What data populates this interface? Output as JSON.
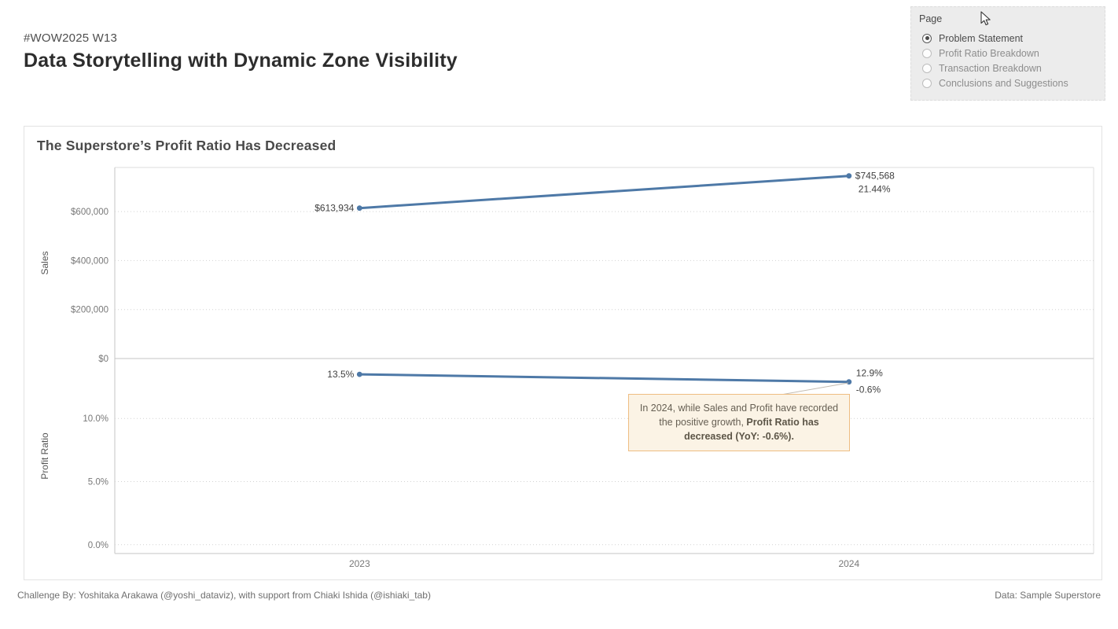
{
  "header": {
    "tag": "#WOW2025 W13",
    "title": "Data Storytelling with Dynamic Zone Visibility"
  },
  "page_panel": {
    "label": "Page",
    "options": [
      {
        "label": "Problem Statement",
        "selected": true
      },
      {
        "label": "Profit Ratio Breakdown",
        "selected": false
      },
      {
        "label": "Transaction Breakdown",
        "selected": false
      },
      {
        "label": "Conclusions and Suggestions",
        "selected": false
      }
    ]
  },
  "chart_data": {
    "type": "line",
    "title": "The Superstore’s Profit Ratio Has Decreased",
    "categories": [
      "2023",
      "2024"
    ],
    "line_color": "#4e79a7",
    "grid": true,
    "panels": [
      {
        "ylabel": "Sales",
        "series": [
          {
            "name": "Sales",
            "values": [
              613934,
              745568
            ]
          }
        ],
        "yticks": [
          0,
          200000,
          400000,
          600000
        ],
        "ytick_labels": [
          "$0",
          "$200,000",
          "$400,000",
          "$600,000"
        ],
        "ylim": [
          0,
          780000
        ],
        "point_labels": [
          [
            "$613,934"
          ],
          [
            "$745,568",
            "21.44%"
          ]
        ]
      },
      {
        "ylabel": "Profit Ratio",
        "series": [
          {
            "name": "Profit Ratio",
            "values": [
              13.5,
              12.9
            ]
          }
        ],
        "yticks": [
          0,
          5,
          10
        ],
        "ytick_labels": [
          "0.0%",
          "5.0%",
          "10.0%"
        ],
        "ylim": [
          -0.7,
          14.75
        ],
        "point_labels": [
          [
            "13.5%"
          ],
          [
            "12.9%",
            "-0.6%"
          ]
        ]
      }
    ]
  },
  "annotation": {
    "text_normal": "In 2024, while Sales and Profit have recorded the positive growth, ",
    "text_bold": "Profit Ratio has decreased (YoY: -0.6%)."
  },
  "footer": {
    "left": "Challenge By: Yoshitaka Arakawa (@yoshi_dataviz), with support from Chiaki Ishida (@ishiaki_tab)",
    "right": "Data: Sample Superstore"
  },
  "colors": {
    "line": "#4e79a7",
    "annotation_bg": "#fbf3e5",
    "annotation_border": "#eebd82",
    "panel_bg": "#ececec"
  }
}
